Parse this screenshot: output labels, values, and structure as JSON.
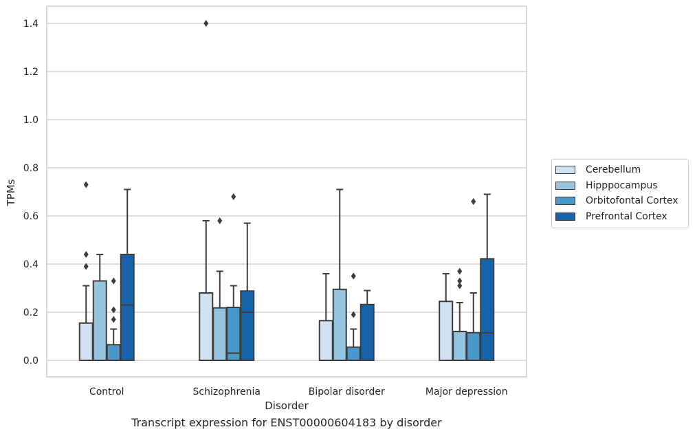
{
  "chart_data": {
    "type": "box",
    "title": "",
    "caption": "Transcript expression for ENST00000604183 by disorder",
    "xlabel": "Disorder",
    "ylabel": "TPMs",
    "ylim": [
      -0.07,
      1.47
    ],
    "yticks": [
      0.0,
      0.2,
      0.4,
      0.6,
      0.8,
      1.0,
      1.2,
      1.4
    ],
    "ytick_labels": [
      "0.0",
      "0.2",
      "0.4",
      "0.6",
      "0.8",
      "1.0",
      "1.2",
      "1.4"
    ],
    "grid": "horizontal",
    "legend_position": "right",
    "categories": [
      "Control",
      "Schizophrenia",
      "Bipolar disorder",
      "Major depression"
    ],
    "series": [
      {
        "name": "Cerebellum",
        "color": "#d0e1f2",
        "boxes": [
          {
            "whislo": 0.0,
            "q1": 0.0,
            "med": 0.0,
            "q3": 0.155,
            "whishi": 0.31,
            "fliers": [
              0.73,
              0.44,
              0.39
            ]
          },
          {
            "whislo": 0.0,
            "q1": 0.0,
            "med": 0.0,
            "q3": 0.28,
            "whishi": 0.58,
            "fliers": [
              1.4
            ]
          },
          {
            "whislo": 0.0,
            "q1": 0.0,
            "med": 0.0,
            "q3": 0.165,
            "whishi": 0.36,
            "fliers": []
          },
          {
            "whislo": 0.0,
            "q1": 0.0,
            "med": 0.0,
            "q3": 0.245,
            "whishi": 0.36,
            "fliers": []
          }
        ]
      },
      {
        "name": "Hipppocampus",
        "color": "#94c4df",
        "boxes": [
          {
            "whislo": 0.0,
            "q1": 0.0,
            "med": 0.0,
            "q3": 0.33,
            "whishi": 0.44,
            "fliers": []
          },
          {
            "whislo": 0.0,
            "q1": 0.0,
            "med": 0.0,
            "q3": 0.218,
            "whishi": 0.37,
            "fliers": [
              0.58
            ]
          },
          {
            "whislo": 0.0,
            "q1": 0.0,
            "med": 0.0,
            "q3": 0.295,
            "whishi": 0.71,
            "fliers": []
          },
          {
            "whislo": 0.0,
            "q1": 0.0,
            "med": 0.0,
            "q3": 0.12,
            "whishi": 0.24,
            "fliers": [
              0.37,
              0.33,
              0.31
            ]
          }
        ]
      },
      {
        "name": "Orbitofontal Cortex",
        "color": "#4a98c9",
        "boxes": [
          {
            "whislo": 0.0,
            "q1": 0.0,
            "med": 0.0,
            "q3": 0.065,
            "whishi": 0.13,
            "fliers": [
              0.33,
              0.21,
              0.17
            ]
          },
          {
            "whislo": 0.0,
            "q1": 0.0,
            "med": 0.03,
            "q3": 0.22,
            "whishi": 0.31,
            "fliers": [
              0.68
            ]
          },
          {
            "whislo": 0.0,
            "q1": 0.0,
            "med": 0.0,
            "q3": 0.055,
            "whishi": 0.13,
            "fliers": [
              0.35,
              0.19
            ]
          },
          {
            "whislo": 0.0,
            "q1": 0.0,
            "med": 0.0,
            "q3": 0.115,
            "whishi": 0.28,
            "fliers": [
              0.66
            ]
          }
        ]
      },
      {
        "name": "Prefrontal Cortex",
        "color": "#1764ab",
        "boxes": [
          {
            "whislo": 0.0,
            "q1": 0.0,
            "med": 0.23,
            "q3": 0.44,
            "whishi": 0.71,
            "fliers": []
          },
          {
            "whislo": 0.0,
            "q1": 0.0,
            "med": 0.2,
            "q3": 0.288,
            "whishi": 0.57,
            "fliers": []
          },
          {
            "whislo": 0.0,
            "q1": 0.0,
            "med": 0.0,
            "q3": 0.232,
            "whishi": 0.29,
            "fliers": []
          },
          {
            "whislo": 0.0,
            "q1": 0.0,
            "med": 0.115,
            "q3": 0.422,
            "whishi": 0.69,
            "fliers": []
          }
        ]
      }
    ]
  }
}
